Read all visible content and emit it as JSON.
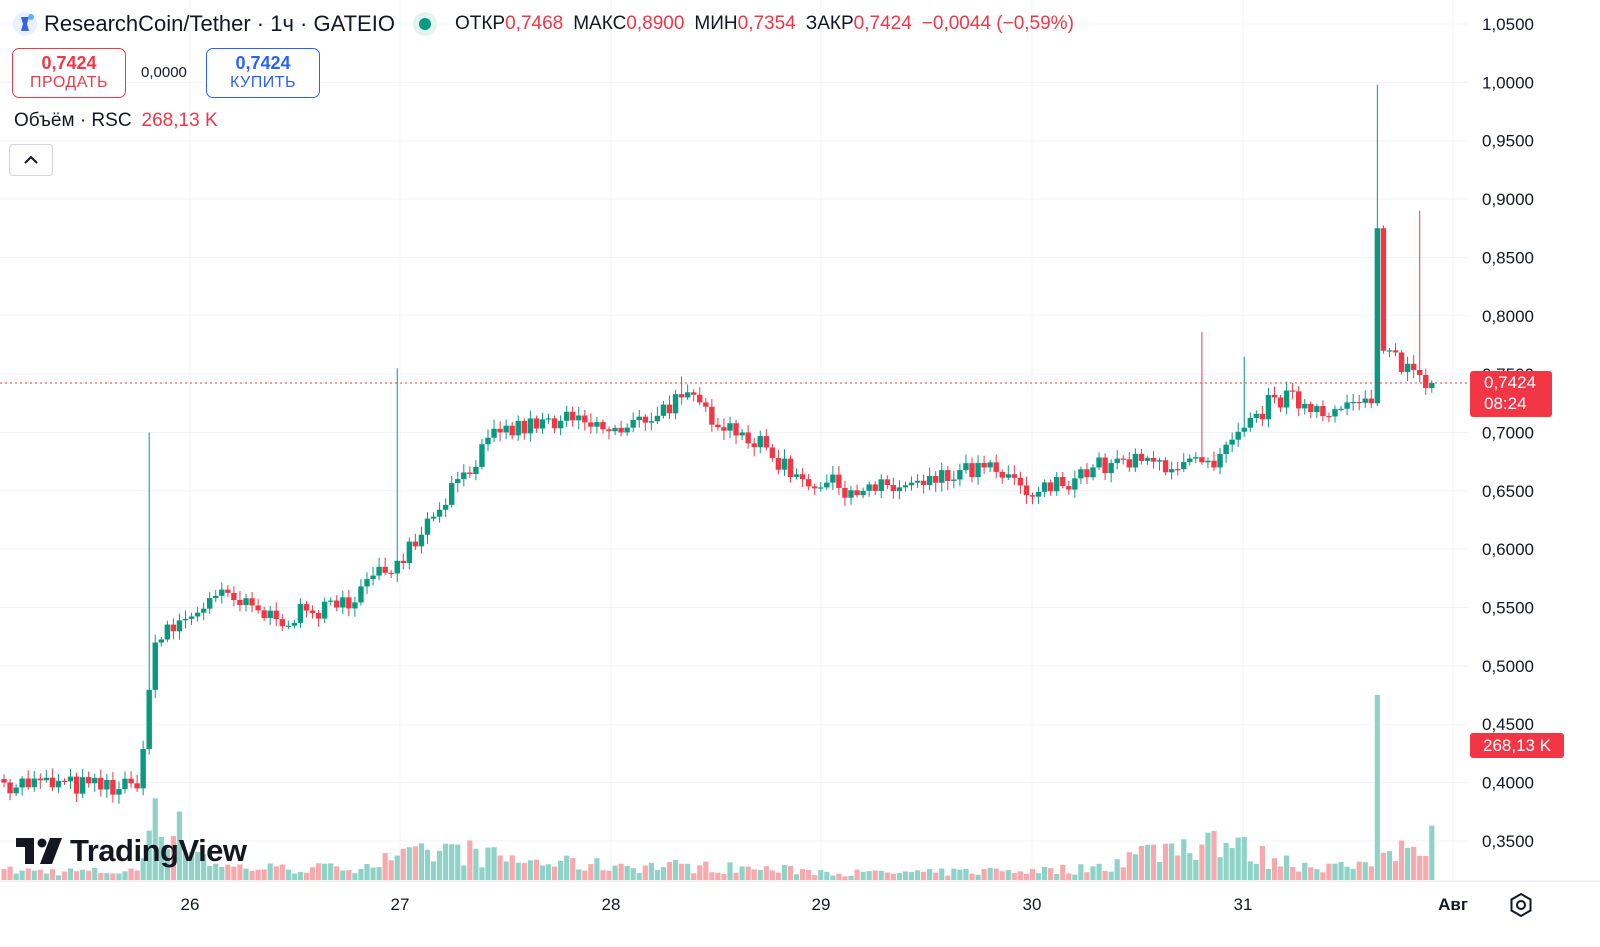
{
  "header": {
    "symbol": "ResearchCoin/Tether · 1ч · GATEIO",
    "open_label": "ОТКР",
    "open": "0,7468",
    "high_label": "МАКС",
    "high": "0,8900",
    "low_label": "МИН",
    "low": "0,7354",
    "close_label": "ЗАКР",
    "close": "0,7424",
    "change": "−0,0044 (−0,59%)"
  },
  "trade": {
    "sell_price": "0,7424",
    "sell_label": "ПРОДАТЬ",
    "spread": "0,0000",
    "buy_price": "0,7424",
    "buy_label": "КУПИТЬ"
  },
  "volume": {
    "label": "Объём · RSC",
    "value": "268,13 K"
  },
  "price_badge": {
    "price": "0,7424",
    "countdown": "08:24"
  },
  "volume_badge": "268,13 K",
  "brand": "TradingView",
  "icons": [
    "chevron-up-icon",
    "settings-icon",
    "tradingview-logo-icon",
    "coin-logo-icon"
  ],
  "colors": {
    "up": "#089981",
    "down": "#f23645",
    "up_volume": "#8fd3c8",
    "down_volume": "#f7a9ae"
  },
  "chart_data": {
    "type": "candlestick",
    "interval": "1h",
    "y_axis_ticks": [
      "1,0500",
      "1,0000",
      "0,9500",
      "0,9000",
      "0,8500",
      "0,8000",
      "0,7500",
      "0,7000",
      "0,6500",
      "0,6000",
      "0,5500",
      "0,5000",
      "0,4500",
      "0,4000",
      "0,3500"
    ],
    "y_range": [
      0.315,
      1.055
    ],
    "x_axis_ticks": [
      "26",
      "27",
      "28",
      "29",
      "30",
      "31",
      "Авг"
    ],
    "last_price": 0.7424,
    "grid": true,
    "anchors": [
      [
        0,
        0.4,
        0.4
      ],
      [
        22,
        0.395,
        0.35
      ],
      [
        25,
        0.52,
        3.0
      ],
      [
        35,
        0.56,
        0.6
      ],
      [
        45,
        0.54,
        0.5
      ],
      [
        55,
        0.55,
        0.5
      ],
      [
        65,
        0.59,
        0.9
      ],
      [
        75,
        0.66,
        1.3
      ],
      [
        82,
        0.7,
        0.9
      ],
      [
        92,
        0.71,
        0.7
      ],
      [
        102,
        0.7,
        0.6
      ],
      [
        112,
        0.73,
        0.6
      ],
      [
        122,
        0.7,
        0.5
      ],
      [
        132,
        0.66,
        0.4
      ],
      [
        142,
        0.65,
        0.3
      ],
      [
        152,
        0.655,
        0.3
      ],
      [
        162,
        0.67,
        0.4
      ],
      [
        170,
        0.645,
        0.4
      ],
      [
        180,
        0.67,
        0.5
      ],
      [
        190,
        0.675,
        1.3
      ],
      [
        200,
        0.67,
        1.8
      ],
      [
        210,
        0.73,
        0.8
      ],
      [
        220,
        0.72,
        0.6
      ],
      [
        226,
        0.725,
        0.5
      ],
      [
        227,
        0.875,
        6.8
      ],
      [
        228,
        0.77,
        1.0
      ],
      [
        236,
        0.7424,
        2.0
      ]
    ],
    "spikes": [
      [
        24,
        0.7
      ],
      [
        65,
        0.755
      ],
      [
        112,
        0.748
      ],
      [
        198,
        0.786
      ],
      [
        205,
        0.765
      ],
      [
        227,
        0.998
      ],
      [
        234,
        0.89
      ]
    ],
    "volume_max": 6.8
  }
}
